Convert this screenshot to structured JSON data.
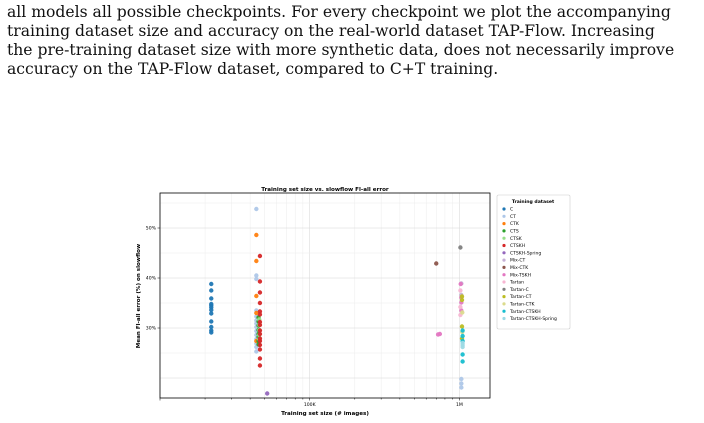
{
  "paragraph_lines": [
    "all models all possible checkpoints. For every checkpoint we plot the accompanying",
    "training dataset size and accuracy on the real-world dataset TAP-Flow. Increasing",
    "the pre-training dataset size with more synthetic data, does not necessarily improve",
    "accuracy on the TAP-Flow dataset, compared to C+T training."
  ],
  "chart_data": {
    "type": "scatter",
    "title": "Training set size vs. slowflow Fl-all error",
    "xlabel": "Training set size (# images)",
    "ylabel": "Mean Fl-all error (%) on slowflow",
    "x_scale": "log",
    "xlim": [
      10000,
      1600000
    ],
    "ylim": [
      16,
      57
    ],
    "x_ticks": [
      {
        "value": 100000,
        "label": "100K"
      },
      {
        "value": 1000000,
        "label": "1M"
      }
    ],
    "y_ticks": [
      {
        "value": 30,
        "label": "30%"
      },
      {
        "value": 40,
        "label": "40%"
      },
      {
        "value": 50,
        "label": "50%"
      }
    ],
    "grid": true,
    "legend_title": "Training dataset",
    "legend_position": "outside-right",
    "series": [
      {
        "name": "C",
        "color": "#1f77b4",
        "points": [
          [
            22000,
            38.8
          ],
          [
            22000,
            37.5
          ],
          [
            22000,
            35.9
          ],
          [
            22000,
            34.8
          ],
          [
            22000,
            34.5
          ],
          [
            22000,
            34.1
          ],
          [
            22000,
            33.6
          ],
          [
            22000,
            32.9
          ],
          [
            22000,
            31.3
          ],
          [
            22000,
            30.2
          ],
          [
            22000,
            29.5
          ],
          [
            22000,
            29.1
          ]
        ]
      },
      {
        "name": "CT",
        "color": "#aec7e8",
        "points": [
          [
            44000,
            53.8
          ],
          [
            44000,
            40.5
          ],
          [
            44000,
            39.8
          ],
          [
            44000,
            33.5
          ],
          [
            44000,
            32.3
          ],
          [
            44000,
            31.5
          ],
          [
            44000,
            30.9
          ],
          [
            44000,
            30.2
          ],
          [
            44000,
            29.4
          ],
          [
            44000,
            28.6
          ],
          [
            44000,
            27.8
          ],
          [
            44000,
            26.9
          ],
          [
            44000,
            26.2
          ],
          [
            44000,
            25.3
          ],
          [
            1030000,
            19.8
          ],
          [
            1030000,
            18.9
          ],
          [
            1030000,
            18.1
          ]
        ]
      },
      {
        "name": "CTK",
        "color": "#ff7f0e",
        "points": [
          [
            44000,
            48.6
          ],
          [
            44000,
            43.4
          ],
          [
            44000,
            36.4
          ],
          [
            44000,
            33.0
          ],
          [
            44000,
            27.4
          ]
        ]
      },
      {
        "name": "CTS",
        "color": "#2ca02c",
        "points": [
          [
            45500,
            32.1
          ],
          [
            45500,
            31.3
          ],
          [
            45500,
            30.5
          ],
          [
            45500,
            29.6
          ],
          [
            45500,
            28.8
          ],
          [
            45500,
            28.2
          ],
          [
            45500,
            27.4
          ],
          [
            45500,
            26.7
          ]
        ]
      },
      {
        "name": "CTSK",
        "color": "#98df8a",
        "points": [
          [
            46000,
            31.7
          ],
          [
            46000,
            30.6
          ],
          [
            46000,
            29.6
          ],
          [
            46000,
            28.6
          ],
          [
            46000,
            27.8
          ]
        ]
      },
      {
        "name": "CTSKH",
        "color": "#d62728",
        "points": [
          [
            46500,
            44.4
          ],
          [
            46500,
            39.3
          ],
          [
            46500,
            37.1
          ],
          [
            46500,
            35.0
          ],
          [
            46500,
            33.3
          ],
          [
            46500,
            32.7
          ],
          [
            46500,
            31.2
          ],
          [
            46500,
            30.6
          ],
          [
            46500,
            29.5
          ],
          [
            46500,
            28.8
          ],
          [
            46500,
            27.9
          ],
          [
            46500,
            27.4
          ],
          [
            46500,
            26.6
          ],
          [
            46500,
            25.7
          ],
          [
            46500,
            23.9
          ],
          [
            46500,
            22.5
          ]
        ]
      },
      {
        "name": "CTSKH-Spring",
        "color": "#9467bd",
        "points": [
          [
            52000,
            16.9
          ]
        ]
      },
      {
        "name": "Mix-CT",
        "color": "#c5b0d5",
        "points": [
          [
            1030000,
            38.9
          ],
          [
            1030000,
            36.6
          ]
        ]
      },
      {
        "name": "Mix-CTK",
        "color": "#8c564b",
        "points": [
          [
            700000,
            42.9
          ]
        ]
      },
      {
        "name": "Mix-TSKH",
        "color": "#e377c2",
        "points": [
          [
            720000,
            28.7
          ],
          [
            740000,
            28.8
          ],
          [
            1020000,
            38.8
          ],
          [
            1030000,
            36.1
          ],
          [
            1030000,
            35.1
          ],
          [
            1030000,
            33.5
          ]
        ]
      },
      {
        "name": "Tartan",
        "color": "#f7b6d2",
        "points": [
          [
            1015000,
            37.5
          ],
          [
            1015000,
            34.2
          ],
          [
            1015000,
            32.6
          ]
        ]
      },
      {
        "name": "Tartan-C",
        "color": "#7f7f7f",
        "points": [
          [
            1015000,
            46.1
          ]
        ]
      },
      {
        "name": "Tartan-CT",
        "color": "#bcbd22",
        "points": [
          [
            1040000,
            36.3
          ],
          [
            1040000,
            35.6
          ],
          [
            1040000,
            30.3
          ],
          [
            1040000,
            27.9
          ]
        ]
      },
      {
        "name": "Tartan-CTK",
        "color": "#dbdb8d",
        "points": [
          [
            1045000,
            33.1
          ],
          [
            1045000,
            29.2
          ]
        ]
      },
      {
        "name": "Tartan-CTSKH",
        "color": "#17becf",
        "points": [
          [
            1050000,
            29.5
          ],
          [
            1050000,
            28.4
          ],
          [
            1050000,
            27.4
          ],
          [
            1050000,
            24.7
          ],
          [
            1050000,
            23.3
          ]
        ]
      },
      {
        "name": "Tartan-CTSKH-Spring",
        "color": "#9edae5",
        "points": [
          [
            1050000,
            27.0
          ],
          [
            1050000,
            26.6
          ],
          [
            1050000,
            26.2
          ]
        ]
      }
    ]
  }
}
